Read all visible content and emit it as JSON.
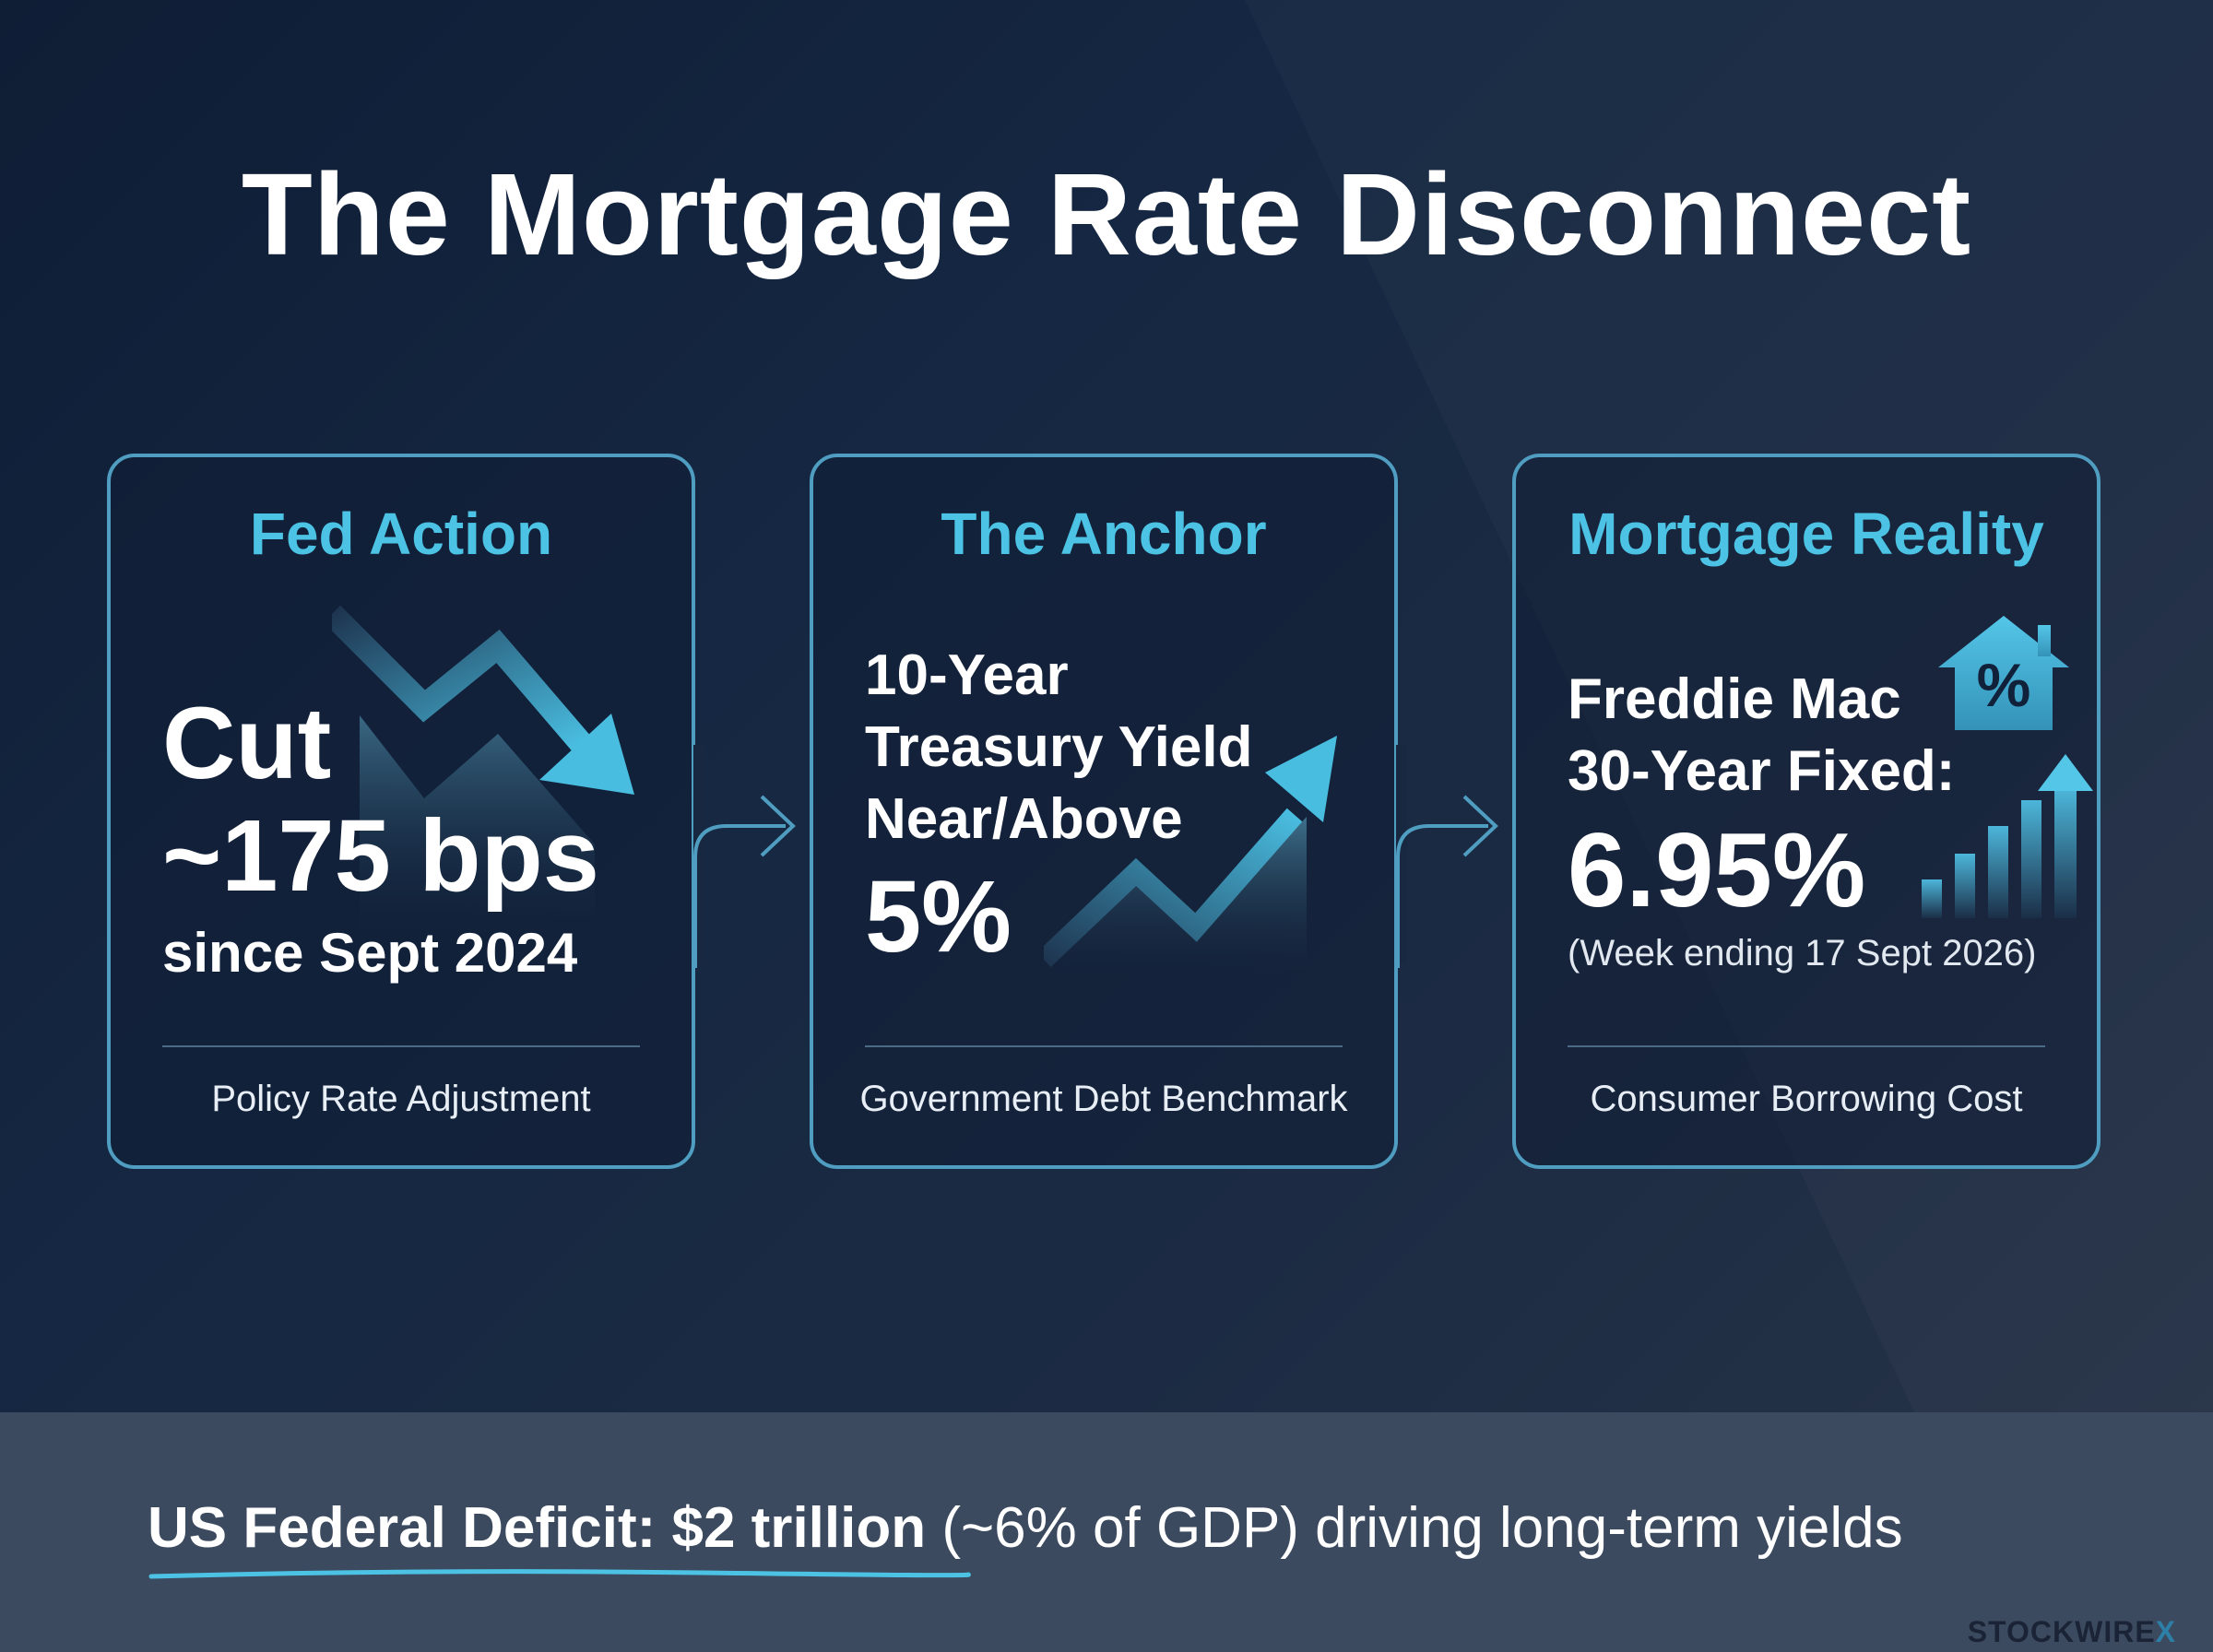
{
  "title": "The Mortgage Rate Disconnect",
  "colors": {
    "accent": "#4cc3e4",
    "border": "#4f9dc0",
    "background": "#152742",
    "footer_bg": "#3c4a5f"
  },
  "cards": [
    {
      "heading": "Fed Action",
      "line1": "Cut",
      "line2": "~175 bps",
      "line3": "since Sept 2024",
      "caption": "Policy Rate Adjustment",
      "icon": "trend-down-arrow-icon"
    },
    {
      "heading": "The Anchor",
      "line1": "10-Year",
      "line2": "Treasury Yield",
      "line3": "Near/Above",
      "value": "5%",
      "caption": "Government Debt Benchmark",
      "icon": "trend-up-arrow-icon"
    },
    {
      "heading": "Mortgage Reality",
      "line1": "Freddie Mac",
      "line2": "30-Year Fixed:",
      "value": "6.95%",
      "note": "(Week ending 17 Sept 2026)",
      "caption": "Consumer Borrowing Cost",
      "icon_house": "house-percent-icon",
      "house_symbol": "%",
      "icon_bars": "rising-bars-icon"
    }
  ],
  "footer": {
    "bold_text": "US Federal Deficit: $2 trillion",
    "regular_text": " (~6% of GDP) driving long-term yields"
  },
  "brand": {
    "name": "STOCKWIRE",
    "mark": "X"
  }
}
